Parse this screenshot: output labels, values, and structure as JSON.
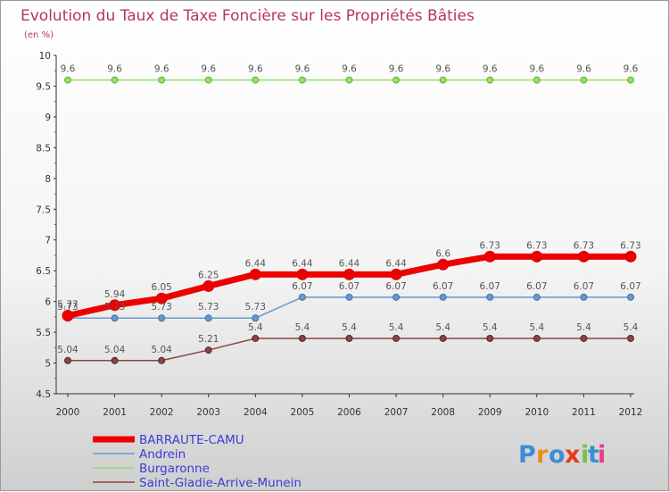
{
  "chart_data": {
    "type": "line",
    "title": "Evolution du Taux de Taxe Foncière sur les Propriétés Bâties",
    "subtitle": "(en %)",
    "x": [
      "2000",
      "2001",
      "2002",
      "2003",
      "2004",
      "2005",
      "2006",
      "2007",
      "2008",
      "2009",
      "2010",
      "2011",
      "2012"
    ],
    "ylim": [
      4.5,
      10
    ],
    "yticks": [
      "4.5",
      "5",
      "5.5",
      "6",
      "6.5",
      "7",
      "7.5",
      "8",
      "8.5",
      "9",
      "9.5",
      "10"
    ],
    "grid": false,
    "legend_position": "bottom-left",
    "series": [
      {
        "name": "BARRAUTE-CAMU",
        "color": "#ee0000",
        "values": [
          5.77,
          5.94,
          6.05,
          6.25,
          6.44,
          6.44,
          6.44,
          6.44,
          6.6,
          6.73,
          6.73,
          6.73,
          6.73
        ],
        "labels": [
          "5.77",
          "5.94",
          "6.05",
          "6.25",
          "6.44",
          "6.44",
          "6.44",
          "6.44",
          "6.6",
          "6.73",
          "6.73",
          "6.73",
          "6.73"
        ]
      },
      {
        "name": "Andrein",
        "color": "#6699cc",
        "values": [
          5.73,
          5.73,
          5.73,
          5.73,
          5.73,
          6.07,
          6.07,
          6.07,
          6.07,
          6.07,
          6.07,
          6.07,
          6.07
        ],
        "labels": [
          "5.73",
          "5.73",
          "5.73",
          "5.73",
          "5.73",
          "6.07",
          "6.07",
          "6.07",
          "6.07",
          "6.07",
          "6.07",
          "6.07",
          "6.07"
        ]
      },
      {
        "name": "Burgaronne",
        "color": "#99dd66",
        "values": [
          9.6,
          9.6,
          9.6,
          9.6,
          9.6,
          9.6,
          9.6,
          9.6,
          9.6,
          9.6,
          9.6,
          9.6,
          9.6
        ],
        "labels": [
          "9.6",
          "9.6",
          "9.6",
          "9.6",
          "9.6",
          "9.6",
          "9.6",
          "9.6",
          "9.6",
          "9.6",
          "9.6",
          "9.6",
          "9.6"
        ]
      },
      {
        "name": "Saint-Gladie-Arrive-Munein",
        "color": "#884444",
        "values": [
          5.04,
          5.04,
          5.04,
          5.21,
          5.4,
          5.4,
          5.4,
          5.4,
          5.4,
          5.4,
          5.4,
          5.4,
          5.4
        ],
        "labels": [
          "5.04",
          "5.04",
          "5.04",
          "5.21",
          "5.4",
          "5.4",
          "5.4",
          "5.4",
          "5.4",
          "5.4",
          "5.4",
          "5.4",
          "5.4"
        ]
      }
    ]
  },
  "logo": {
    "letters": [
      "P",
      "r",
      "o",
      "x",
      "i",
      "t",
      "i"
    ],
    "colors": [
      "#3a8ed6",
      "#f08a1c",
      "#3a8ed6",
      "#e83a1c",
      "#7cc040",
      "#3a8ed6",
      "#e83a8a"
    ]
  }
}
